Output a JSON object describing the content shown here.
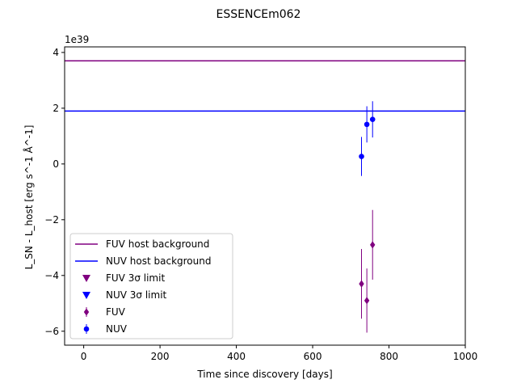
{
  "chart_data": {
    "type": "scatter",
    "title": "ESSENCEm062",
    "xlabel": "Time since discovery [days]",
    "ylabel": "L_SN - L_host [erg s^-1 Å^-1]",
    "offset_label": "1e39",
    "xlim": [
      -50,
      1000
    ],
    "ylim": [
      -6.5,
      4.2
    ],
    "xticks": [
      0,
      200,
      400,
      600,
      800,
      1000
    ],
    "yticks": [
      -6,
      -4,
      -2,
      0,
      2,
      4
    ],
    "grid": false,
    "legend_position": "lower-left",
    "hlines": [
      {
        "name": "FUV host background",
        "y": 3.7,
        "color": "#800080"
      },
      {
        "name": "NUV host background",
        "y": 1.9,
        "color": "#0000ff"
      }
    ],
    "series": [
      {
        "name": "FUV 3σ limit",
        "marker": "triangle-down",
        "color": "#800080",
        "points": []
      },
      {
        "name": "NUV 3σ limit",
        "marker": "triangle-down",
        "color": "#0000ff",
        "points": []
      },
      {
        "name": "FUV",
        "marker": "diamond",
        "color": "#800080",
        "points": [
          {
            "x": 728,
            "y": -4.3,
            "err": 1.25
          },
          {
            "x": 742,
            "y": -4.9,
            "err": 1.15
          },
          {
            "x": 757,
            "y": -2.9,
            "err": 1.25
          }
        ]
      },
      {
        "name": "NUV",
        "marker": "circle",
        "color": "#0000ff",
        "points": [
          {
            "x": 728,
            "y": 0.27,
            "err": 0.7
          },
          {
            "x": 742,
            "y": 1.42,
            "err": 0.65
          },
          {
            "x": 757,
            "y": 1.6,
            "err": 0.65
          }
        ]
      }
    ]
  }
}
